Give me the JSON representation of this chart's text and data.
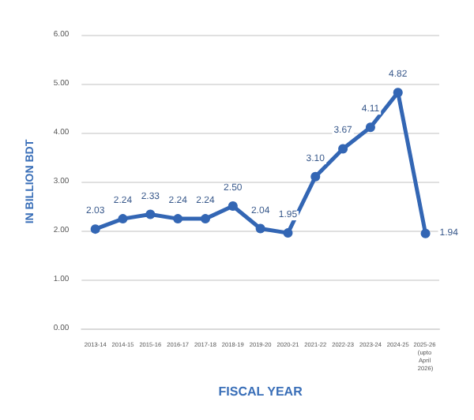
{
  "chart_data": {
    "type": "line",
    "xlabel": "FISCAL YEAR",
    "ylabel": "IN BILLION BDT",
    "categories": [
      "2013-14",
      "2014-15",
      "2015-16",
      "2016-17",
      "2017-18",
      "2018-19",
      "2019-20",
      "2020-21",
      "2021-22",
      "2022-23",
      "2023-24",
      "2024-25",
      "2025-26 (upto April 2026)"
    ],
    "series": [
      {
        "color": "#3366b4",
        "values": [
          2.03,
          2.24,
          2.33,
          2.24,
          2.24,
          2.5,
          2.04,
          1.95,
          3.1,
          3.67,
          4.11,
          4.82,
          1.94
        ],
        "value_labels": [
          "2.03",
          "2.24",
          "2.33",
          "2.24",
          "2.24",
          "2.50",
          "2.04",
          "1.95",
          "3.10",
          "3.67",
          "4.11",
          "4.82",
          "1.94"
        ]
      }
    ],
    "ylim": [
      0,
      6
    ],
    "yticks": [
      {
        "value": 0,
        "label": "0.00"
      },
      {
        "value": 1,
        "label": "1.00"
      },
      {
        "value": 2,
        "label": "2.00"
      },
      {
        "value": 3,
        "label": "3.00"
      },
      {
        "value": 4,
        "label": "4.00"
      },
      {
        "value": 5,
        "label": "5.00"
      },
      {
        "value": 6,
        "label": "6.00"
      }
    ],
    "grid": "y",
    "marker": "circle"
  }
}
